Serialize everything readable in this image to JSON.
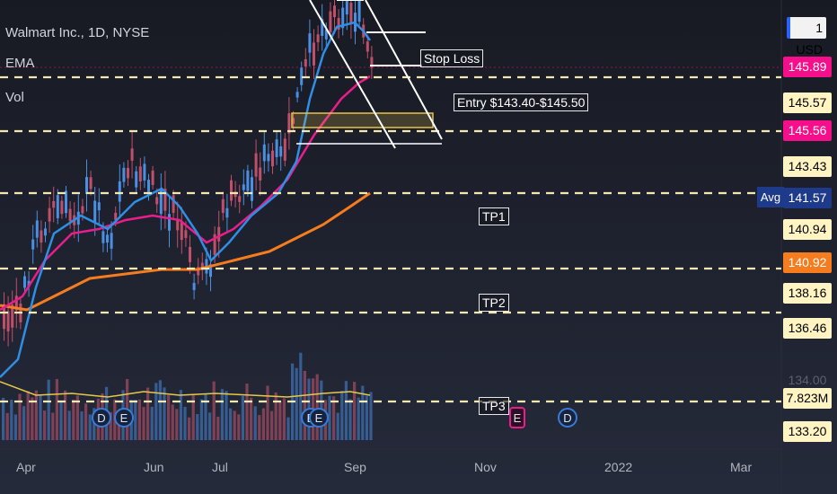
{
  "legend": {
    "symbol": "Walmart Inc., 1D, NYSE",
    "indicator1": "EMA",
    "indicator2": "Vol"
  },
  "currency_button": "1 USD",
  "avg_label": "Avg",
  "annotations": {
    "stop_loss": "Stop Loss",
    "entry": "Entry $143.40-$145.50",
    "tp1": "TP1",
    "tp2": "TP2",
    "tp3": "TP3"
  },
  "event_markers": [
    "D",
    "E",
    "E",
    "E",
    "E",
    "D"
  ],
  "price_labels": [
    {
      "value": "145.89",
      "bg": "#f50f8a",
      "color": "#ffffff"
    },
    {
      "value": "145.57",
      "bg": "#fff4c2",
      "color": "#000000"
    },
    {
      "value": "145.56",
      "bg": "#f50f8a",
      "color": "#ffffff"
    },
    {
      "value": "143.43",
      "bg": "#fff4c2",
      "color": "#000000"
    },
    {
      "value": "141.57",
      "bg": "#1e3a8a",
      "color": "#ffffff"
    },
    {
      "value": "140.94",
      "bg": "#fff4c2",
      "color": "#000000"
    },
    {
      "value": "140.92",
      "bg": "#f57c1f",
      "color": "#ffffff"
    },
    {
      "value": "138.16",
      "bg": "#fff4c2",
      "color": "#000000"
    },
    {
      "value": "136.46",
      "bg": "#fff4c2",
      "color": "#000000"
    },
    {
      "value": "134.00",
      "bg": "transparent",
      "color": "#5d606b"
    },
    {
      "value": "7.823M",
      "bg": "#fff4c2",
      "color": "#000000"
    },
    {
      "value": "133.20",
      "bg": "#fff4c2",
      "color": "#000000"
    }
  ],
  "x_axis": [
    "Apr",
    "Jun",
    "Jul",
    "Sep",
    "Nov",
    "2022",
    "Mar"
  ],
  "colors": {
    "background": "#1a1d27",
    "candle_up": "#4a90e2",
    "candle_down": "#c0506a",
    "ema_fast": "#2f8ee5",
    "ema_mid": "#e91e8c",
    "ema_slow": "#f57c1f",
    "volume_ma": "#e8c84a",
    "level_line": "#f3e9b0"
  }
}
